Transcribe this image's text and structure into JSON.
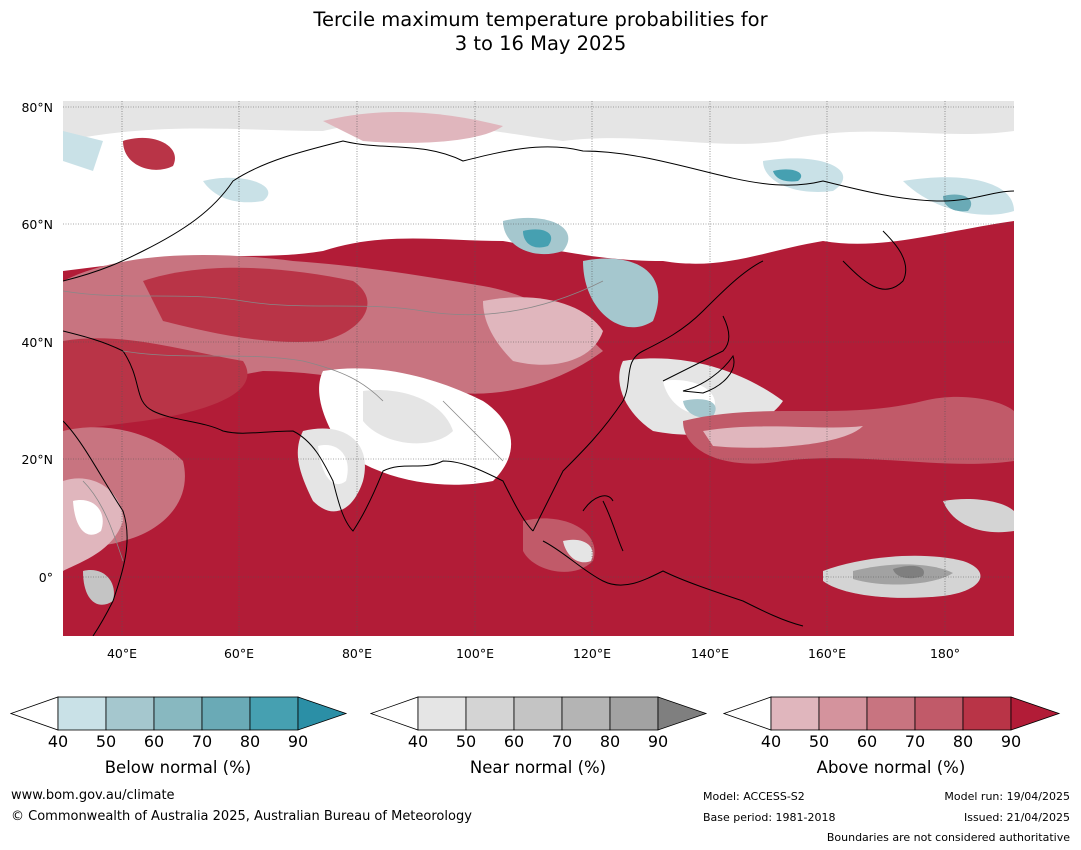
{
  "title_line1": "Tercile maximum temperature probabilities for",
  "title_line2": "3 to 16 May 2025",
  "lat_labels": [
    "80°N",
    "60°N",
    "40°N",
    "20°N",
    "0°"
  ],
  "lon_labels": [
    "40°E",
    "60°E",
    "80°E",
    "100°E",
    "120°E",
    "140°E",
    "160°E",
    "180°"
  ],
  "colorbars": [
    {
      "label": "Below normal (%)",
      "ticks": [
        "40",
        "50",
        "60",
        "70",
        "80",
        "90"
      ],
      "colors": [
        "#ffffff",
        "#c9e1e7",
        "#a5c7ce",
        "#88b8c0",
        "#6aaab6",
        "#46a0b1",
        "#2b8fa6"
      ]
    },
    {
      "label": "Near normal (%)",
      "ticks": [
        "40",
        "50",
        "60",
        "70",
        "80",
        "90"
      ],
      "colors": [
        "#ffffff",
        "#e5e5e5",
        "#d4d4d4",
        "#c4c4c4",
        "#b4b4b4",
        "#a2a2a2",
        "#7f7f7f"
      ]
    },
    {
      "label": "Above normal (%)",
      "ticks": [
        "40",
        "50",
        "60",
        "70",
        "80",
        "90"
      ],
      "colors": [
        "#ffffff",
        "#e0b6bd",
        "#d4939d",
        "#c87480",
        "#c15a69",
        "#b93447",
        "#b21c37"
      ]
    }
  ],
  "footer": {
    "website": "www.bom.gov.au/climate",
    "copyright": "© Commonwealth of Australia 2025, Australian Bureau of Meteorology",
    "model": "Model: ACCESS-S2",
    "base_period": "Base period: 1981-2018",
    "model_run": "Model run: 19/04/2025",
    "issued": "Issued: 21/04/2025",
    "disclaimer": "Boundaries are not considered authoritative"
  }
}
